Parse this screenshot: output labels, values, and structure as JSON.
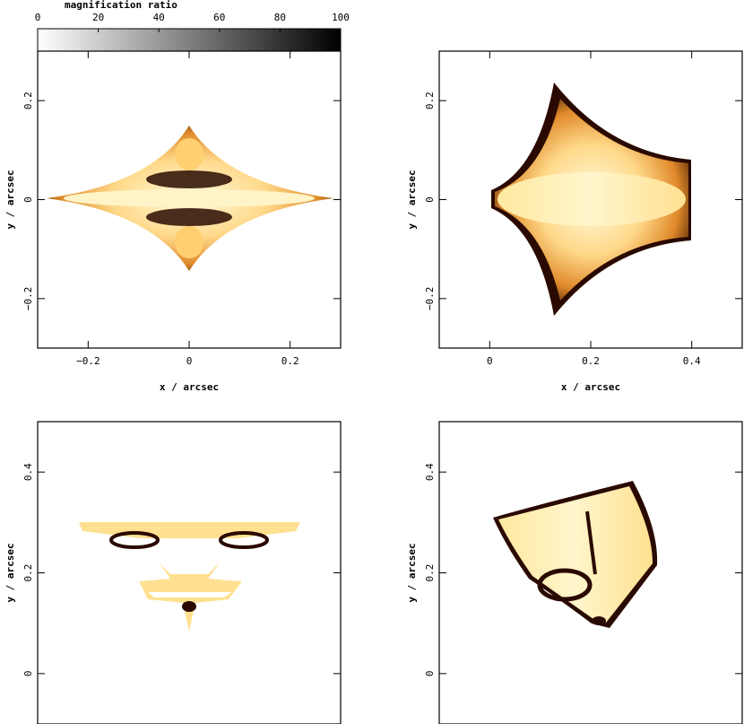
{
  "chart_data": [
    {
      "type": "colorbar",
      "title": "magnification ratio",
      "xlim": [
        0,
        100
      ],
      "xticks": [
        0,
        20,
        40,
        60,
        80,
        100
      ]
    },
    {
      "type": "image",
      "xlabel": "x / arcsec",
      "ylabel": "y / arcsec",
      "xlim": [
        -0.3,
        0.3
      ],
      "ylim": [
        -0.3,
        0.3
      ],
      "xticks": [
        {
          "value": -0.2,
          "label": "−0.2"
        },
        0,
        0.2
      ],
      "yticks": [
        {
          "value": -0.2,
          "label": "−0.2"
        },
        0,
        0.2
      ]
    },
    {
      "type": "image",
      "xlabel": "x / arcsec",
      "ylabel": "y / arcsec",
      "xlim": [
        -0.1,
        0.5
      ],
      "ylim": [
        -0.3,
        0.3
      ],
      "xticks": [
        0,
        0.2,
        0.4
      ],
      "yticks": [
        {
          "value": -0.2,
          "label": "−0.2"
        },
        0,
        0.2
      ]
    },
    {
      "type": "image",
      "ylabel": "y / arcsec",
      "ylim": [
        -0.1,
        0.5
      ],
      "yticks": [
        0,
        0.2,
        0.4
      ]
    },
    {
      "type": "image",
      "ylabel": "y / arcsec",
      "ylim": [
        -0.1,
        0.5
      ],
      "yticks": [
        0,
        0.2,
        0.4
      ]
    }
  ]
}
